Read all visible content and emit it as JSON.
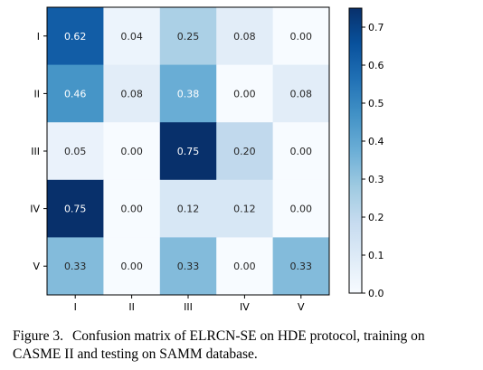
{
  "chart_data": {
    "type": "heatmap",
    "row_labels": [
      "I",
      "II",
      "III",
      "IV",
      "V"
    ],
    "col_labels": [
      "I",
      "II",
      "III",
      "IV",
      "V"
    ],
    "values": [
      [
        0.62,
        0.04,
        0.25,
        0.08,
        0.0
      ],
      [
        0.46,
        0.08,
        0.38,
        0.0,
        0.08
      ],
      [
        0.05,
        0.0,
        0.75,
        0.2,
        0.0
      ],
      [
        0.75,
        0.0,
        0.12,
        0.12,
        0.0
      ],
      [
        0.33,
        0.0,
        0.33,
        0.0,
        0.33
      ]
    ],
    "colormap": "Blues",
    "colorbar_range": [
      0,
      0.75
    ],
    "colorbar_ticks": [
      "0.0",
      "0.1",
      "0.2",
      "0.3",
      "0.4",
      "0.5",
      "0.6",
      "0.7"
    ],
    "grid": false
  },
  "caption": {
    "label": "Figure 3.",
    "text": "Confusion matrix of ELRCN-SE on HDE protocol, training on CASME II and testing on SAMM database."
  }
}
